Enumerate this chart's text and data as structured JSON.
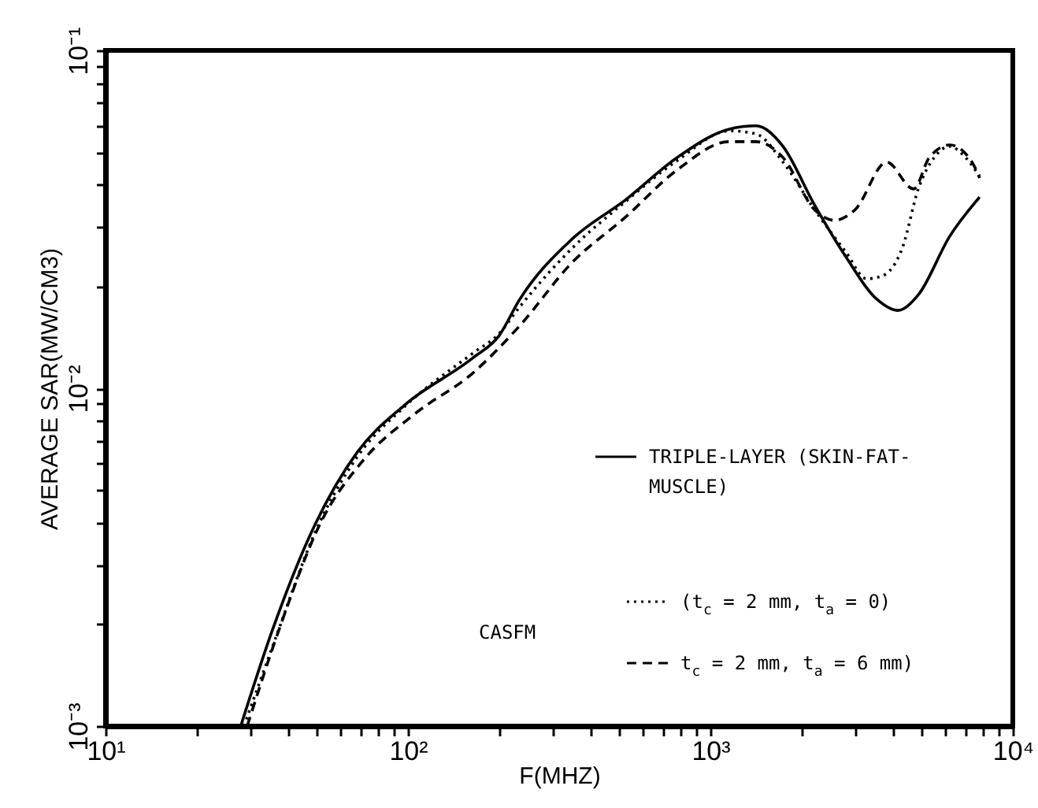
{
  "chart_data": {
    "type": "line",
    "xlabel": "F(MHZ)",
    "ylabel": "AVERAGE SAR(MW/CM3)",
    "log": "xy",
    "grid": false,
    "legend": "bottom right",
    "marker": "none",
    "xlim": [
      10,
      10000
    ],
    "ylim": [
      0.001,
      0.1
    ],
    "xticks": [
      {
        "value": 10,
        "label": "10¹"
      },
      {
        "value": 20,
        "label": null
      },
      {
        "value": 30,
        "label": null
      },
      {
        "value": 40,
        "label": null
      },
      {
        "value": 50,
        "label": null
      },
      {
        "value": 60,
        "label": null
      },
      {
        "value": 70,
        "label": null
      },
      {
        "value": 80,
        "label": null
      },
      {
        "value": 90,
        "label": null
      },
      {
        "value": 100,
        "label": "10²"
      },
      {
        "value": 200,
        "label": null
      },
      {
        "value": 300,
        "label": null
      },
      {
        "value": 400,
        "label": null
      },
      {
        "value": 500,
        "label": null
      },
      {
        "value": 600,
        "label": null
      },
      {
        "value": 700,
        "label": null
      },
      {
        "value": 800,
        "label": null
      },
      {
        "value": 900,
        "label": null
      },
      {
        "value": 1000,
        "label": "10³"
      },
      {
        "value": 2000,
        "label": null
      },
      {
        "value": 3000,
        "label": null
      },
      {
        "value": 4000,
        "label": null
      },
      {
        "value": 5000,
        "label": null
      },
      {
        "value": 6000,
        "label": null
      },
      {
        "value": 7000,
        "label": null
      },
      {
        "value": 8000,
        "label": null
      },
      {
        "value": 9000,
        "label": null
      },
      {
        "value": 10000,
        "label": "10⁴"
      }
    ],
    "yticks": [
      {
        "value": 0.001,
        "label": "10⁻³"
      },
      {
        "value": 0.002,
        "label": null
      },
      {
        "value": 0.003,
        "label": null
      },
      {
        "value": 0.004,
        "label": null
      },
      {
        "value": 0.005,
        "label": null
      },
      {
        "value": 0.006,
        "label": null
      },
      {
        "value": 0.007,
        "label": null
      },
      {
        "value": 0.008,
        "label": null
      },
      {
        "value": 0.009,
        "label": null
      },
      {
        "value": 0.01,
        "label": "10⁻²"
      },
      {
        "value": 0.02,
        "label": null
      },
      {
        "value": 0.03,
        "label": null
      },
      {
        "value": 0.04,
        "label": null
      },
      {
        "value": 0.05,
        "label": null
      },
      {
        "value": 0.06,
        "label": null
      },
      {
        "value": 0.07,
        "label": null
      },
      {
        "value": 0.08,
        "label": null
      },
      {
        "value": 0.09,
        "label": null
      },
      {
        "value": 0.1,
        "label": "10⁻¹"
      }
    ],
    "annotations": [
      "CASFM"
    ],
    "series": [
      {
        "name": "TRIPLE-LAYER (SKIN-FAT-MUSCLE)",
        "color": "#000000",
        "line_style": "solid",
        "x": [
          28,
          35.6,
          49.3,
          68,
          97.7,
          164,
          200,
          234,
          348,
          524,
          777,
          1155,
          1416,
          1738,
          2209,
          2805,
          3563,
          4168,
          4870,
          6190,
          7770
        ],
        "values": [
          0.001,
          0.00192,
          0.00395,
          0.00647,
          0.00893,
          0.0123,
          0.0143,
          0.0183,
          0.0276,
          0.0361,
          0.0482,
          0.0585,
          0.0598,
          0.052,
          0.0349,
          0.0245,
          0.0183,
          0.017,
          0.0189,
          0.0282,
          0.0368
        ]
      },
      {
        "name": "(t$_{c}$ = 2 mm, t$_{a}$ = 0)",
        "color": "#000000",
        "line_style": "dotted",
        "x": [
          28.7,
          36.5,
          49.3,
          68,
          97.7,
          164,
          200,
          234,
          348,
          524,
          777,
          1155,
          1416,
          1738,
          2209,
          2805,
          3282,
          3700,
          4318,
          4870,
          5495,
          6190,
          6980,
          7770
        ],
        "values": [
          0.001,
          0.00182,
          0.00374,
          0.00627,
          0.00884,
          0.0127,
          0.0145,
          0.0174,
          0.0259,
          0.0357,
          0.0472,
          0.0578,
          0.0566,
          0.0467,
          0.0338,
          0.0253,
          0.0211,
          0.0215,
          0.0261,
          0.0389,
          0.0482,
          0.052,
          0.0482,
          0.0424
        ]
      },
      {
        "name": "t$_{c}$ = 2 mm, t$_{a}$ = 6 mm)",
        "color": "#000000",
        "line_style": "dashed",
        "x": [
          29.4,
          37.4,
          51.1,
          70.6,
          105,
          164,
          234,
          348,
          524,
          777,
          1155,
          1416,
          1738,
          2209,
          2576,
          3013,
          3828,
          4700,
          5296,
          6190,
          7330,
          7770
        ],
        "values": [
          0.001,
          0.00192,
          0.00395,
          0.00607,
          0.00838,
          0.0111,
          0.0153,
          0.0235,
          0.0321,
          0.0443,
          0.0537,
          0.0537,
          0.0482,
          0.0338,
          0.0314,
          0.0338,
          0.0467,
          0.0389,
          0.0482,
          0.0525,
          0.0467,
          0.0419
        ]
      }
    ]
  }
}
